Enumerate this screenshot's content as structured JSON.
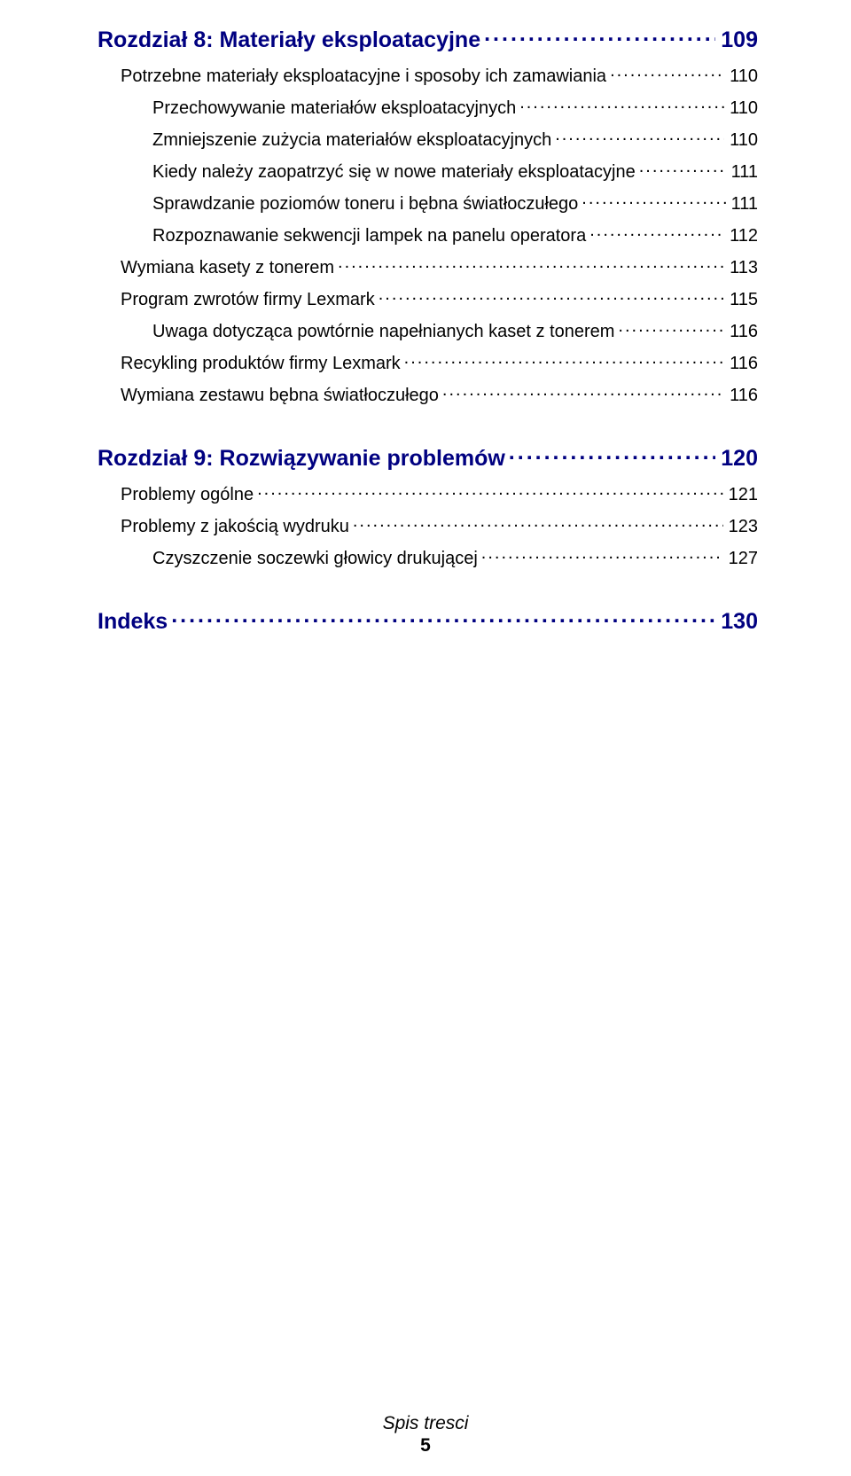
{
  "chapter8": {
    "label": "Rozdział 8:  Materiały eksploatacyjne",
    "page": "109",
    "entries": [
      {
        "level": "section",
        "label": "Potrzebne materiały eksploatacyjne i sposoby ich zamawiania",
        "page": "110"
      },
      {
        "level": "sub",
        "label": "Przechowywanie materiałów eksploatacyjnych",
        "page": "110"
      },
      {
        "level": "sub",
        "label": "Zmniejszenie zużycia materiałów eksploatacyjnych",
        "page": "110"
      },
      {
        "level": "sub",
        "label": "Kiedy należy zaopatrzyć się w nowe materiały eksploatacyjne",
        "page": "111"
      },
      {
        "level": "sub",
        "label": "Sprawdzanie poziomów toneru i bębna światłoczułego",
        "page": "111"
      },
      {
        "level": "sub",
        "label": "Rozpoznawanie sekwencji lampek na panelu operatora",
        "page": "112"
      },
      {
        "level": "section",
        "label": "Wymiana kasety z tonerem",
        "page": "113"
      },
      {
        "level": "section",
        "label": "Program zwrotów firmy Lexmark",
        "page": "115"
      },
      {
        "level": "sub",
        "label": "Uwaga dotycząca powtórnie napełnianych kaset z tonerem",
        "page": "116"
      },
      {
        "level": "section",
        "label": "Recykling produktów firmy Lexmark",
        "page": "116"
      },
      {
        "level": "section",
        "label": "Wymiana zestawu bębna światłoczułego",
        "page": "116"
      }
    ]
  },
  "chapter9": {
    "label": "Rozdział 9:  Rozwiązywanie problemów",
    "page": "120",
    "entries": [
      {
        "level": "section",
        "label": "Problemy ogólne",
        "page": "121"
      },
      {
        "level": "section",
        "label": "Problemy z jakością wydruku",
        "page": "123"
      },
      {
        "level": "sub",
        "label": "Czyszczenie soczewki głowicy drukującej",
        "page": "127"
      }
    ]
  },
  "index": {
    "label": "Indeks",
    "page": "130"
  },
  "footer": {
    "title": "Spis tresci",
    "page": "5"
  }
}
